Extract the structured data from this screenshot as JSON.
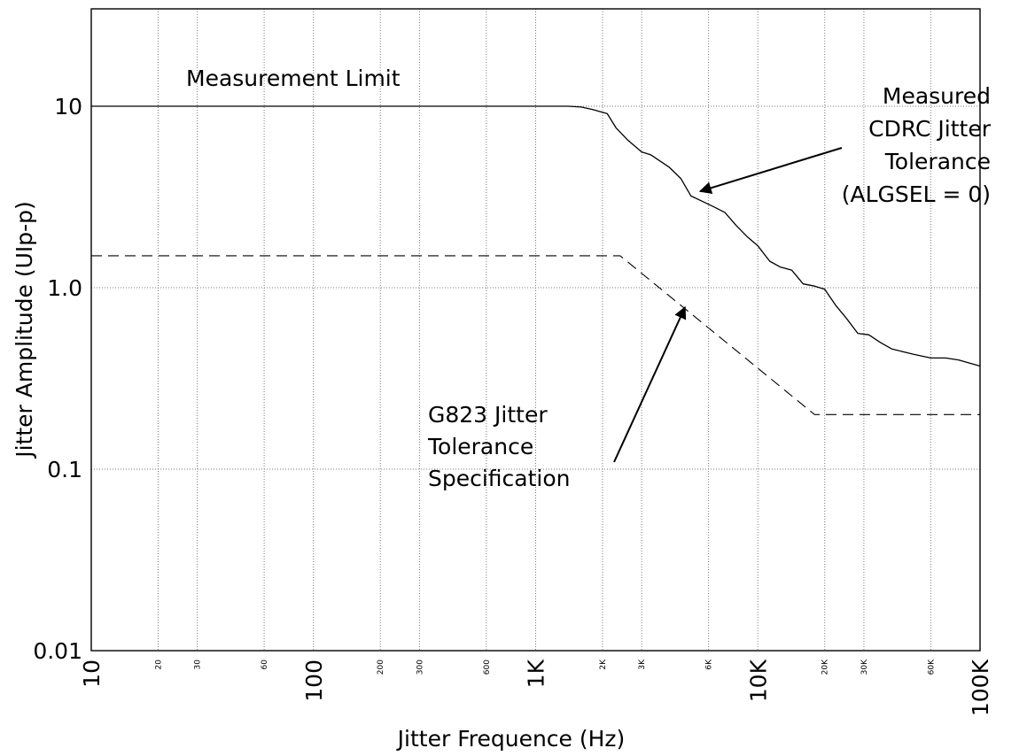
{
  "chart_data": {
    "type": "line",
    "title": "",
    "xlabel": "Jitter Frequence (Hz)",
    "ylabel": "Jitter Amplitude (UIp-p)",
    "x_scale": "log",
    "y_scale": "log",
    "xlim": [
      10,
      100000
    ],
    "ylim": [
      0.01,
      40
    ],
    "grid": true,
    "x_major_ticks": [
      {
        "v": 10,
        "label": "10"
      },
      {
        "v": 100,
        "label": "100"
      },
      {
        "v": 1000,
        "label": "1K"
      },
      {
        "v": 10000,
        "label": "10K"
      },
      {
        "v": 100000,
        "label": "100K"
      }
    ],
    "x_minor_ticks": [
      {
        "v": 20,
        "label": "20"
      },
      {
        "v": 30,
        "label": "30"
      },
      {
        "v": 60,
        "label": "60"
      },
      {
        "v": 200,
        "label": "200"
      },
      {
        "v": 300,
        "label": "300"
      },
      {
        "v": 600,
        "label": "600"
      },
      {
        "v": 2000,
        "label": "2K"
      },
      {
        "v": 3000,
        "label": "3K"
      },
      {
        "v": 6000,
        "label": "6K"
      },
      {
        "v": 20000,
        "label": "20K"
      },
      {
        "v": 30000,
        "label": "30K"
      },
      {
        "v": 60000,
        "label": "60K"
      }
    ],
    "y_ticks": [
      {
        "v": 0.01,
        "label": "0.01"
      },
      {
        "v": 0.1,
        "label": "0.1"
      },
      {
        "v": 1,
        "label": "1.0"
      },
      {
        "v": 10,
        "label": "10"
      }
    ],
    "series": [
      {
        "style": "solid",
        "x": [
          10,
          1400,
          1600,
          1800,
          2100,
          2300,
          2600,
          3000,
          3300,
          4000,
          4500,
          5000,
          5600,
          6300,
          7100,
          8000,
          9000,
          10000,
          11300,
          12600,
          14200,
          16000,
          18000,
          20000,
          22400,
          25000,
          28200,
          31600,
          35500,
          40000,
          50000,
          60000,
          70000,
          80000,
          100000
        ],
        "y": [
          10,
          10,
          9.9,
          9.6,
          9.1,
          7.6,
          6.5,
          5.6,
          5.4,
          4.6,
          4.0,
          3.2,
          3.0,
          2.8,
          2.6,
          2.2,
          1.9,
          1.7,
          1.4,
          1.3,
          1.25,
          1.05,
          1.02,
          0.98,
          0.8,
          0.68,
          0.56,
          0.55,
          0.5,
          0.46,
          0.43,
          0.41,
          0.41,
          0.4,
          0.37
        ]
      },
      {
        "style": "dashed",
        "x": [
          10,
          2400,
          18000,
          100000
        ],
        "y": [
          1.5,
          1.5,
          0.2,
          0.2
        ]
      }
    ],
    "annotations": [
      {
        "lines": [
          "Measurement Limit"
        ]
      },
      {
        "lines": [
          "Measured",
          "CDRC Jitter",
          "Tolerance",
          "(ALGSEL = 0)"
        ],
        "arrow_to": {
          "x": 5500,
          "y": 3.4
        }
      },
      {
        "lines": [
          "G823 Jitter",
          "Tolerance",
          "Specification"
        ],
        "arrow_to": {
          "x": 4700,
          "y": 0.78
        }
      }
    ]
  }
}
